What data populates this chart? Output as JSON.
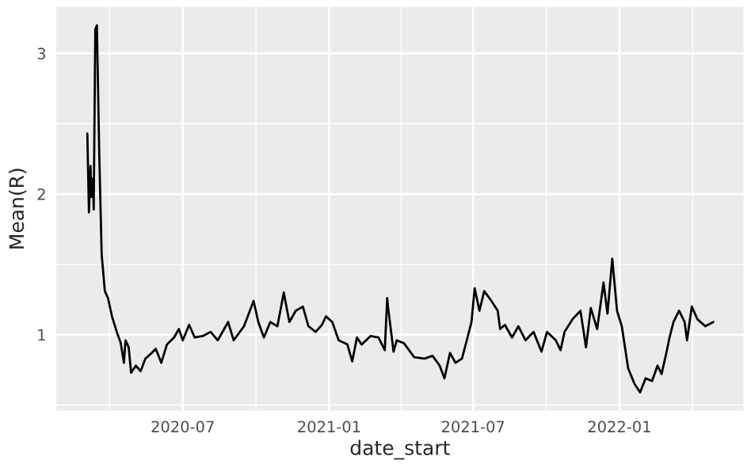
{
  "chart_data": {
    "type": "line",
    "xlabel": "date_start",
    "ylabel": "Mean(R)",
    "xlim": [
      "2020-01-24",
      "2022-06-06"
    ],
    "ylim": [
      0.46,
      3.33
    ],
    "xticks": [
      {
        "value": "2020-07-01",
        "label": "2020-07"
      },
      {
        "value": "2021-01-01",
        "label": "2021-01"
      },
      {
        "value": "2021-07-01",
        "label": "2021-07"
      },
      {
        "value": "2022-01-01",
        "label": "2022-01"
      }
    ],
    "yticks": [
      1,
      2,
      3
    ],
    "grid": true,
    "legend": false,
    "series": [
      {
        "color": "#000000",
        "x": [
          "2020-03-03",
          "2020-03-05",
          "2020-03-07",
          "2020-03-08",
          "2020-03-10",
          "2020-03-11",
          "2020-03-13",
          "2020-03-15",
          "2020-03-18",
          "2020-03-21",
          "2020-03-25",
          "2020-03-29",
          "2020-04-03",
          "2020-04-09",
          "2020-04-14",
          "2020-04-18",
          "2020-04-20",
          "2020-04-24",
          "2020-04-27",
          "2020-05-03",
          "2020-05-09",
          "2020-05-15",
          "2020-05-23",
          "2020-05-28",
          "2020-06-04",
          "2020-06-11",
          "2020-06-20",
          "2020-06-26",
          "2020-07-01",
          "2020-07-09",
          "2020-07-16",
          "2020-07-26",
          "2020-08-05",
          "2020-08-14",
          "2020-08-27",
          "2020-09-03",
          "2020-09-16",
          "2020-09-28",
          "2020-10-04",
          "2020-10-11",
          "2020-10-19",
          "2020-10-28",
          "2020-11-05",
          "2020-11-12",
          "2020-11-20",
          "2020-11-29",
          "2020-12-06",
          "2020-12-15",
          "2020-12-23",
          "2020-12-28",
          "2021-01-05",
          "2021-01-13",
          "2021-01-24",
          "2021-01-30",
          "2021-02-05",
          "2021-02-11",
          "2021-02-22",
          "2021-03-04",
          "2021-03-12",
          "2021-03-15",
          "2021-03-16",
          "2021-03-23",
          "2021-03-27",
          "2021-04-05",
          "2021-04-18",
          "2021-05-01",
          "2021-05-11",
          "2021-05-20",
          "2021-05-26",
          "2021-06-02",
          "2021-06-09",
          "2021-06-17",
          "2021-06-24",
          "2021-06-29",
          "2021-07-03",
          "2021-07-09",
          "2021-07-15",
          "2021-07-24",
          "2021-08-01",
          "2021-08-04",
          "2021-08-10",
          "2021-08-19",
          "2021-08-27",
          "2021-09-05",
          "2021-09-15",
          "2021-09-25",
          "2021-10-02",
          "2021-10-13",
          "2021-10-19",
          "2021-10-24",
          "2021-11-03",
          "2021-11-13",
          "2021-11-20",
          "2021-11-26",
          "2021-12-04",
          "2021-12-12",
          "2021-12-17",
          "2021-12-23",
          "2021-12-29",
          "2022-01-04",
          "2022-01-12",
          "2022-01-20",
          "2022-01-27",
          "2022-02-03",
          "2022-02-11",
          "2022-02-18",
          "2022-02-23",
          "2022-03-01",
          "2022-03-05",
          "2022-03-10",
          "2022-03-17",
          "2022-03-24",
          "2022-03-27",
          "2022-04-02",
          "2022-04-09",
          "2022-04-19",
          "2022-04-29"
        ],
        "values": [
          2.43,
          1.87,
          2.2,
          1.98,
          2.11,
          1.89,
          3.17,
          3.2,
          2.28,
          1.57,
          1.31,
          1.26,
          1.13,
          1.02,
          0.94,
          0.8,
          0.96,
          0.91,
          0.73,
          0.78,
          0.74,
          0.83,
          0.87,
          0.9,
          0.8,
          0.93,
          0.98,
          1.04,
          0.96,
          1.07,
          0.98,
          0.99,
          1.02,
          0.96,
          1.09,
          0.96,
          1.06,
          1.24,
          1.09,
          0.98,
          1.09,
          1.06,
          1.3,
          1.09,
          1.17,
          1.2,
          1.06,
          1.02,
          1.07,
          1.13,
          1.09,
          0.96,
          0.93,
          0.81,
          0.98,
          0.93,
          0.99,
          0.98,
          0.89,
          1.26,
          1.2,
          0.88,
          0.96,
          0.94,
          0.84,
          0.83,
          0.85,
          0.78,
          0.69,
          0.87,
          0.8,
          0.83,
          0.98,
          1.09,
          1.33,
          1.17,
          1.31,
          1.24,
          1.17,
          1.04,
          1.07,
          0.98,
          1.06,
          0.96,
          1.02,
          0.88,
          1.02,
          0.96,
          0.89,
          1.02,
          1.11,
          1.17,
          0.91,
          1.19,
          1.04,
          1.37,
          1.15,
          1.54,
          1.17,
          1.06,
          0.76,
          0.65,
          0.59,
          0.69,
          0.67,
          0.78,
          0.72,
          0.87,
          0.98,
          1.09,
          1.17,
          1.09,
          0.96,
          1.2,
          1.11,
          1.06,
          1.09
        ]
      }
    ]
  }
}
